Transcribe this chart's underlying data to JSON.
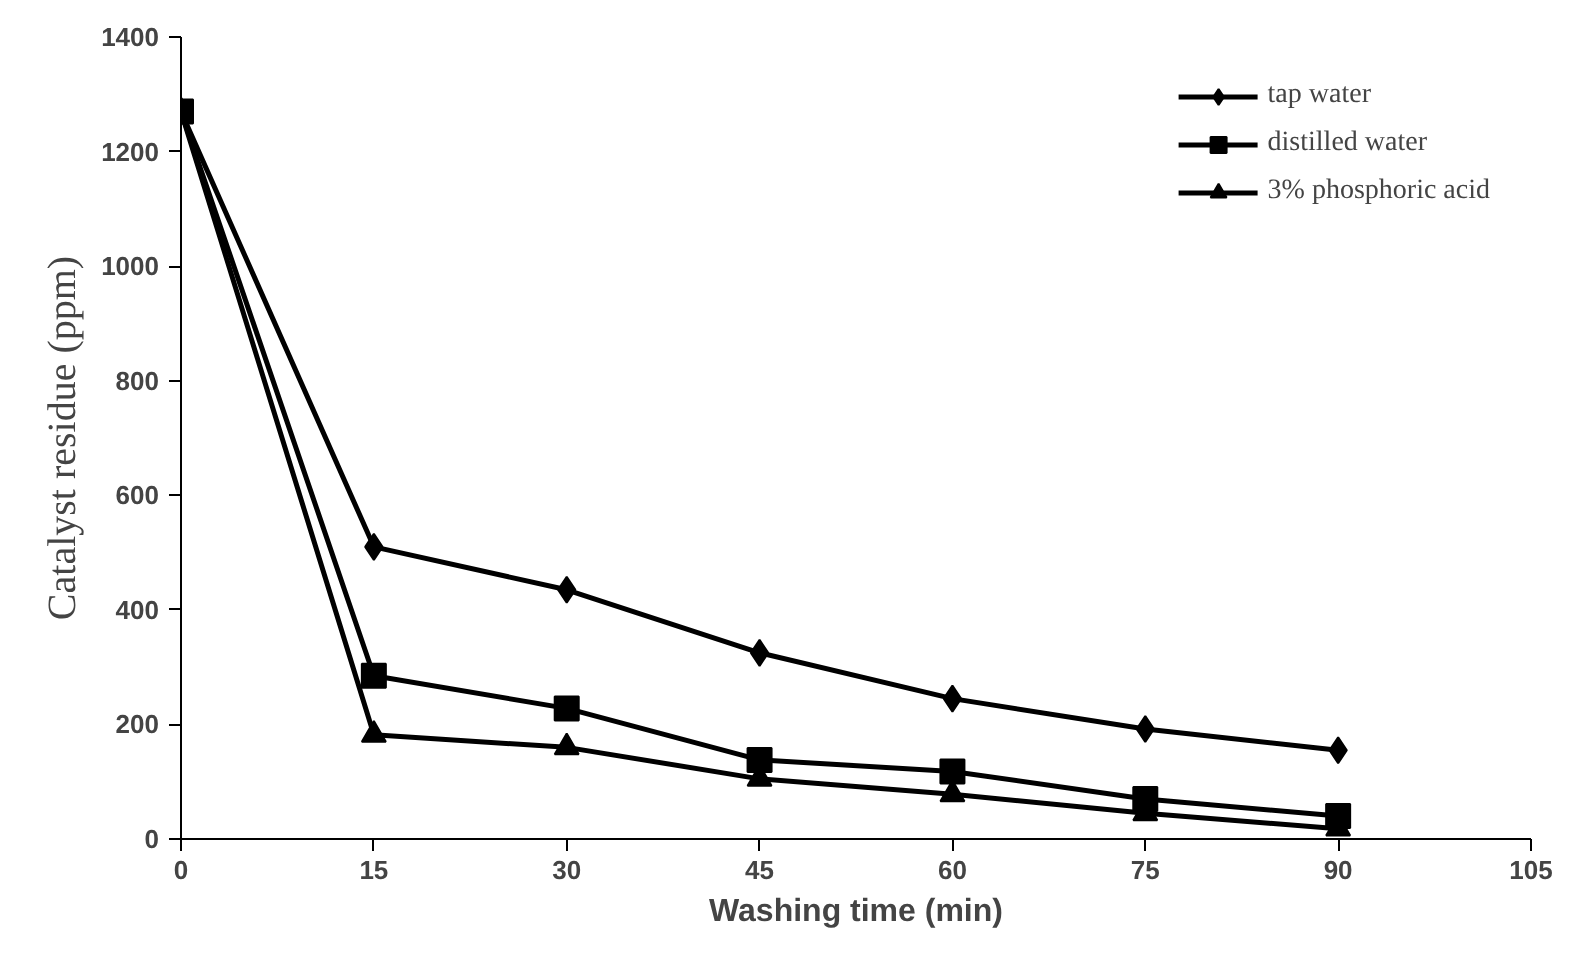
{
  "chart_data": {
    "type": "line",
    "xlabel": "Washing time (min)",
    "ylabel": "Catalyst residue (ppm)",
    "x": [
      0,
      15,
      30,
      45,
      60,
      75,
      90
    ],
    "series": [
      {
        "name": "tap water",
        "color": "#000000",
        "marker": "diamond",
        "values": [
          1270,
          510,
          435,
          325,
          245,
          192,
          155
        ]
      },
      {
        "name": "distilled water",
        "color": "#000000",
        "marker": "square",
        "values": [
          1270,
          285,
          228,
          138,
          118,
          70,
          40
        ]
      },
      {
        "name": "3% phosphoric acid",
        "color": "#000000",
        "marker": "triangle",
        "values": [
          1270,
          182,
          160,
          105,
          78,
          45,
          18
        ]
      }
    ],
    "xlim": [
      0,
      105
    ],
    "xticks": [
      0,
      15,
      30,
      45,
      60,
      75,
      90,
      105
    ],
    "ylim": [
      0,
      1400
    ],
    "yticks": [
      0,
      200,
      400,
      600,
      800,
      1000,
      1200,
      1400
    ],
    "grid": false,
    "legend": "top right",
    "line_style": "solid"
  }
}
